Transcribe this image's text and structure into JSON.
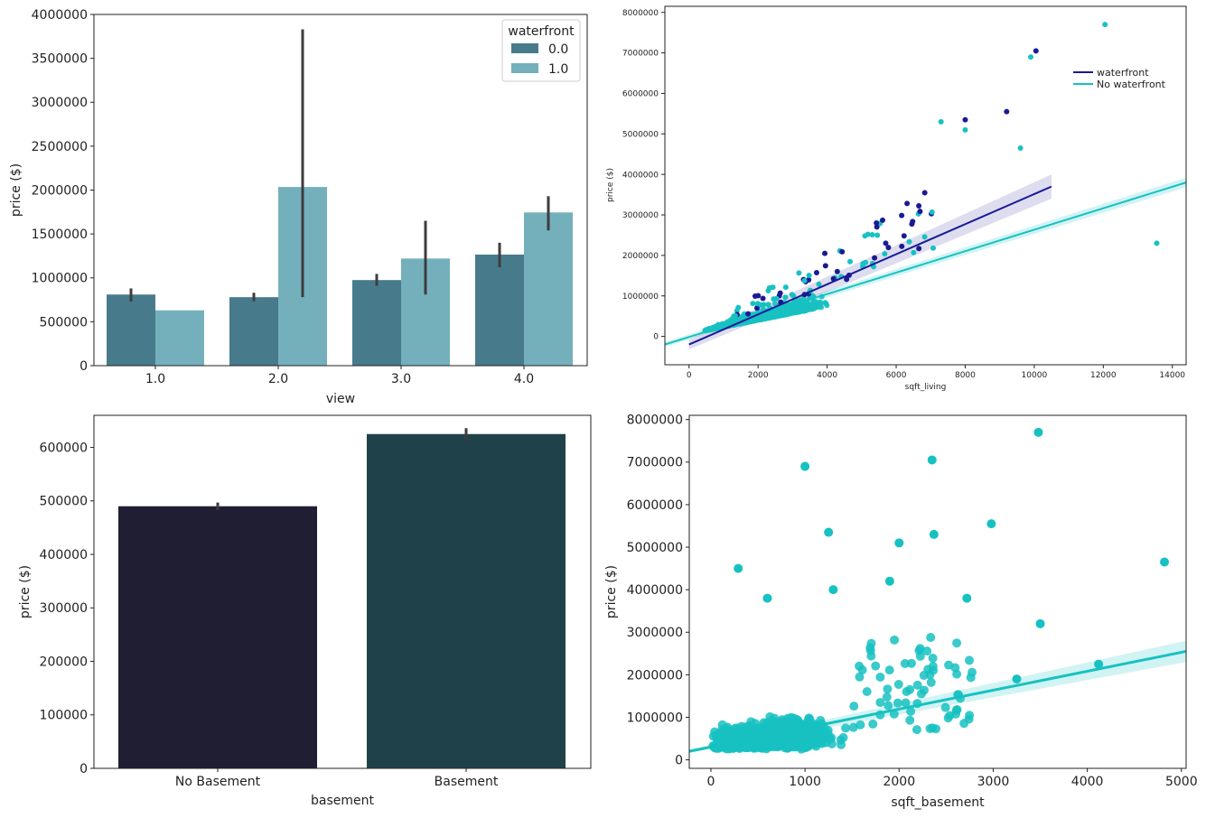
{
  "chart_data": [
    {
      "type": "bar",
      "xlabel": "view",
      "ylabel": "price ($)",
      "ylim": [
        0,
        4000000
      ],
      "yticks": [
        0,
        500000,
        1000000,
        1500000,
        2000000,
        2500000,
        3000000,
        3500000,
        4000000
      ],
      "categories": [
        "1.0",
        "2.0",
        "3.0",
        "4.0"
      ],
      "legend": {
        "title": "waterfront",
        "placement": "top-right"
      },
      "series": [
        {
          "name": "0.0",
          "color": "#477b8c",
          "values": [
            810000,
            780000,
            975000,
            1265000
          ],
          "err_low": [
            730000,
            735000,
            910000,
            1120000
          ],
          "err_high": [
            880000,
            830000,
            1045000,
            1400000
          ]
        },
        {
          "name": "1.0",
          "color": "#74b0bb",
          "values": [
            630000,
            2035000,
            1220000,
            1745000
          ],
          "err_low": [
            630000,
            780000,
            810000,
            1540000
          ],
          "err_high": [
            630000,
            3830000,
            1650000,
            1930000
          ]
        }
      ]
    },
    {
      "type": "scatter",
      "xlabel": "sqft_living",
      "ylabel": "price ($)",
      "xlim": [
        -700,
        14400
      ],
      "ylim": [
        -700000,
        8150000
      ],
      "xticks": [
        0,
        2000,
        4000,
        6000,
        8000,
        10000,
        12000,
        14000
      ],
      "yticks": [
        0,
        1000000,
        2000000,
        3000000,
        4000000,
        5000000,
        6000000,
        7000000,
        8000000
      ],
      "legend": {
        "placement": "top-right"
      },
      "series": [
        {
          "name": "waterfront",
          "color": "#1a1a96",
          "regression": {
            "x": [
              0,
              10500
            ],
            "y": [
              -200000,
              3700000
            ]
          }
        },
        {
          "name": "No waterfront",
          "color": "#17c1c1",
          "regression": {
            "x": [
              -700,
              14400
            ],
            "y": [
              -200000,
              3800000
            ]
          }
        }
      ],
      "outliers": [
        {
          "x": 12050,
          "y": 7700000
        },
        {
          "x": 9900,
          "y": 6900000
        },
        {
          "x": 10050,
          "y": 7050000
        },
        {
          "x": 13550,
          "y": 2300000
        },
        {
          "x": 9600,
          "y": 4650000
        },
        {
          "x": 8000,
          "y": 5350000
        },
        {
          "x": 8000,
          "y": 5100000
        },
        {
          "x": 7300,
          "y": 5300000
        },
        {
          "x": 9200,
          "y": 5550000
        }
      ]
    },
    {
      "type": "bar",
      "xlabel": "basement",
      "ylabel": "price ($)",
      "ylim": [
        0,
        660000
      ],
      "yticks": [
        0,
        100000,
        200000,
        300000,
        400000,
        500000,
        600000
      ],
      "categories": [
        "No Basement",
        "Basement"
      ],
      "colors": [
        "#1f1e32",
        "#1f424a"
      ],
      "values": [
        490000,
        625000
      ],
      "err_low": [
        483000,
        614000
      ],
      "err_high": [
        497000,
        636000
      ]
    },
    {
      "type": "scatter",
      "xlabel": "sqft_basement",
      "ylabel": "price ($)",
      "xlim": [
        -230,
        5050
      ],
      "ylim": [
        -200000,
        8100000
      ],
      "xticks": [
        0,
        1000,
        2000,
        3000,
        4000,
        5000
      ],
      "yticks": [
        0,
        1000000,
        2000000,
        3000000,
        4000000,
        5000000,
        6000000,
        7000000,
        8000000
      ],
      "color": "#17c1c1",
      "regression": {
        "x": [
          -230,
          5050
        ],
        "y": [
          200000,
          2550000
        ]
      },
      "outliers": [
        {
          "x": 3480,
          "y": 7700000
        },
        {
          "x": 2350,
          "y": 7050000
        },
        {
          "x": 1000,
          "y": 6900000
        },
        {
          "x": 2980,
          "y": 5550000
        },
        {
          "x": 1250,
          "y": 5350000
        },
        {
          "x": 2370,
          "y": 5300000
        },
        {
          "x": 2000,
          "y": 5100000
        },
        {
          "x": 4820,
          "y": 4650000
        },
        {
          "x": 290,
          "y": 4500000
        },
        {
          "x": 1300,
          "y": 4000000
        },
        {
          "x": 600,
          "y": 3800000
        },
        {
          "x": 2720,
          "y": 3800000
        },
        {
          "x": 3500,
          "y": 3200000
        },
        {
          "x": 4120,
          "y": 2250000
        },
        {
          "x": 3250,
          "y": 1900000
        },
        {
          "x": 1900,
          "y": 4200000
        }
      ]
    }
  ]
}
